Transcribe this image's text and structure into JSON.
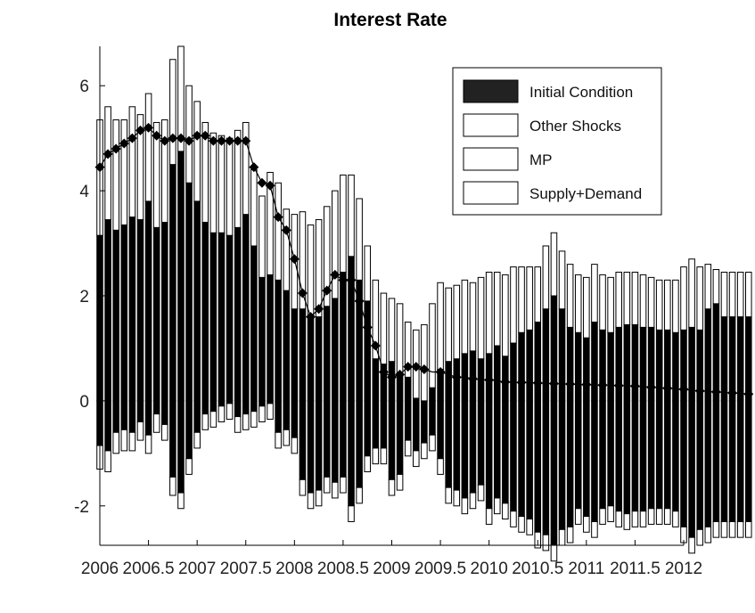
{
  "chart_data": {
    "type": "bar",
    "subtype": "stacked-historical-decomposition",
    "title": "Interest Rate",
    "xlabel": "",
    "ylabel": "",
    "xlim": [
      2006,
      2012
    ],
    "ylim": [
      -2.75,
      6.75
    ],
    "x_ticks": [
      2006,
      2006.5,
      2007,
      2007.5,
      2008,
      2008.5,
      2009,
      2009.5,
      2010,
      2010.5,
      2011,
      2011.5,
      2012
    ],
    "x_tick_labels": [
      "2006",
      "2006.5",
      "2007",
      "2007.5",
      "2008",
      "2008.5",
      "2009",
      "2009.5",
      "2010",
      "2010.5",
      "2011",
      "2011.5",
      "2012"
    ],
    "y_ticks": [
      -2,
      0,
      2,
      4,
      6
    ],
    "y_tick_labels": [
      "-2",
      "0",
      "2",
      "4",
      "6"
    ],
    "grid": false,
    "legend_position": "top-right",
    "x_start": 2006,
    "x_step": 0.0833333,
    "series": [
      {
        "name": "Initial Condition",
        "color": "#000000",
        "pos": [
          3.15,
          3.45,
          3.25,
          3.35,
          3.5,
          3.45,
          3.8,
          3.3,
          3.4,
          4.5,
          4.75,
          4.15,
          3.8,
          3.4,
          3.2,
          3.2,
          3.15,
          3.3,
          3.55,
          2.95,
          2.35,
          2.4,
          2.3,
          2.1,
          1.75,
          1.75,
          1.6,
          1.6,
          1.8,
          1.95,
          2.45,
          2.75,
          2.3,
          1.9,
          0.8,
          0.7,
          0.75,
          0.5,
          0.45,
          0.05,
          0.0,
          0.25,
          0.6,
          0.75,
          0.8,
          0.9,
          0.95,
          0.8,
          0.9,
          1.05,
          0.85,
          1.1,
          1.3,
          1.35,
          1.5,
          1.75,
          2.0,
          1.75,
          1.4,
          1.3,
          1.2,
          1.5,
          1.35,
          1.3,
          1.4,
          1.45,
          1.45,
          1.4,
          1.4,
          1.35,
          1.35,
          1.3,
          1.35,
          1.4,
          1.35,
          1.75,
          1.85,
          1.6,
          1.6,
          1.6,
          1.6
        ],
        "neg": [
          -0.85,
          -0.95,
          -0.6,
          -0.55,
          -0.6,
          -0.4,
          -0.65,
          -0.25,
          -0.45,
          -1.45,
          -1.75,
          -1.1,
          -0.6,
          -0.25,
          -0.2,
          -0.1,
          -0.05,
          -0.3,
          -0.25,
          -0.2,
          -0.1,
          -0.05,
          -0.6,
          -0.55,
          -0.7,
          -1.5,
          -1.75,
          -1.7,
          -1.45,
          -1.55,
          -1.45,
          -2.0,
          -1.65,
          -1.05,
          -0.9,
          -0.9,
          -1.5,
          -1.4,
          -0.75,
          -0.95,
          -0.8,
          -0.65,
          -1.1,
          -1.65,
          -1.7,
          -1.85,
          -1.75,
          -1.6,
          -2.05,
          -1.85,
          -1.95,
          -2.1,
          -2.2,
          -2.25,
          -2.5,
          -2.55,
          -2.75,
          -2.45,
          -2.4,
          -2.05,
          -2.2,
          -2.3,
          -2.05,
          -2.0,
          -2.1,
          -2.15,
          -2.1,
          -2.1,
          -2.05,
          -2.05,
          -2.05,
          -2.1,
          -2.4,
          -2.6,
          -2.45,
          -2.4,
          -2.3,
          -2.3,
          -2.3,
          -2.3,
          -2.3
        ]
      },
      {
        "name": "Other Shocks",
        "color": "#ffffff",
        "pos": [
          2.2,
          2.15,
          2.1,
          2.0,
          2.1,
          2.0,
          2.05,
          2.0,
          1.95,
          2.0,
          2.0,
          1.85,
          1.9,
          1.9,
          1.9,
          1.85,
          1.85,
          1.85,
          1.75,
          1.45,
          1.55,
          1.95,
          1.85,
          1.55,
          1.8,
          1.85,
          1.75,
          1.85,
          1.9,
          2.05,
          1.85,
          1.55,
          1.55,
          1.05,
          1.5,
          1.35,
          1.2,
          1.35,
          1.05,
          1.3,
          1.45,
          1.6,
          1.65,
          1.4,
          1.4,
          1.4,
          1.3,
          1.55,
          1.55,
          1.4,
          1.55,
          1.45,
          1.25,
          1.2,
          1.05,
          1.2,
          1.2,
          1.1,
          1.2,
          1.1,
          1.15,
          1.1,
          1.05,
          1.05,
          1.05,
          1.0,
          1.0,
          1.0,
          0.95,
          0.95,
          0.95,
          1.0,
          1.2,
          1.3,
          1.2,
          0.85,
          0.65,
          0.85,
          0.85,
          0.85,
          0.85
        ],
        "neg": [
          -0.45,
          -0.4,
          -0.4,
          -0.4,
          -0.35,
          -0.35,
          -0.35,
          -0.35,
          -0.3,
          -0.35,
          -0.3,
          -0.3,
          -0.3,
          -0.3,
          -0.3,
          -0.3,
          -0.3,
          -0.3,
          -0.3,
          -0.3,
          -0.3,
          -0.3,
          -0.3,
          -0.3,
          -0.3,
          -0.3,
          -0.3,
          -0.3,
          -0.3,
          -0.3,
          -0.3,
          -0.3,
          -0.3,
          -0.3,
          -0.3,
          -0.3,
          -0.3,
          -0.3,
          -0.3,
          -0.3,
          -0.3,
          -0.3,
          -0.3,
          -0.3,
          -0.3,
          -0.3,
          -0.3,
          -0.3,
          -0.3,
          -0.3,
          -0.3,
          -0.3,
          -0.3,
          -0.3,
          -0.3,
          -0.3,
          -0.3,
          -0.3,
          -0.3,
          -0.3,
          -0.3,
          -0.3,
          -0.3,
          -0.3,
          -0.3,
          -0.3,
          -0.3,
          -0.3,
          -0.3,
          -0.3,
          -0.3,
          -0.3,
          -0.3,
          -0.3,
          -0.3,
          -0.3,
          -0.3,
          -0.3,
          -0.3,
          -0.3,
          -0.3
        ]
      },
      {
        "name": "MP",
        "color": "#ffffff",
        "pos": [
          0,
          0,
          0,
          0,
          0,
          0,
          0,
          0,
          0,
          0,
          0,
          0,
          0,
          0,
          0,
          0,
          0,
          0,
          0,
          0,
          0,
          0,
          0,
          0,
          0,
          0,
          0,
          0,
          0,
          0,
          0,
          0,
          0,
          0,
          0,
          0,
          0,
          0,
          0,
          0,
          0,
          0,
          0,
          0,
          0,
          0,
          0,
          0,
          0,
          0,
          0,
          0,
          0,
          0,
          0,
          0,
          0,
          0,
          0,
          0,
          0,
          0,
          0,
          0,
          0,
          0,
          0,
          0,
          0,
          0,
          0,
          0,
          0,
          0,
          0,
          0,
          0,
          0,
          0,
          0,
          0
        ],
        "neg": [
          0,
          0,
          0,
          0,
          0,
          0,
          0,
          0,
          0,
          0,
          0,
          0,
          0,
          0,
          0,
          0,
          0,
          0,
          0,
          0,
          0,
          0,
          0,
          0,
          0,
          0,
          0,
          0,
          0,
          0,
          0,
          0,
          0,
          0,
          0,
          0,
          0,
          0,
          0,
          0,
          0,
          0,
          0,
          0,
          0,
          0,
          0,
          0,
          0,
          0,
          0,
          0,
          0,
          0,
          0,
          0,
          0,
          0,
          0,
          0,
          0,
          0,
          0,
          0,
          0,
          0,
          0,
          0,
          0,
          0,
          0,
          0,
          0,
          0,
          0,
          0,
          0,
          0,
          0,
          0,
          0
        ]
      },
      {
        "name": "Supply+Demand",
        "color": "#ffffff",
        "pos": [
          0,
          0,
          0,
          0,
          0,
          0,
          0,
          0,
          0,
          0,
          0,
          0,
          0,
          0,
          0,
          0,
          0,
          0,
          0,
          0,
          0,
          0,
          0,
          0,
          0,
          0,
          0,
          0,
          0,
          0,
          0,
          0,
          0,
          0,
          0,
          0,
          0,
          0,
          0,
          0,
          0,
          0,
          0,
          0,
          0,
          0,
          0,
          0,
          0,
          0,
          0,
          0,
          0,
          0,
          0,
          0,
          0,
          0,
          0,
          0,
          0,
          0,
          0,
          0,
          0,
          0,
          0,
          0,
          0,
          0,
          0,
          0,
          0,
          0,
          0,
          0,
          0,
          0,
          0,
          0,
          0
        ],
        "neg": [
          0,
          0,
          0,
          0,
          0,
          0,
          0,
          0,
          0,
          0,
          0,
          0,
          0,
          0,
          0,
          0,
          0,
          0,
          0,
          0,
          0,
          0,
          0,
          0,
          0,
          0,
          0,
          0,
          0,
          0,
          0,
          0,
          0,
          0,
          0,
          0,
          0,
          0,
          0,
          0,
          0,
          0,
          0,
          0,
          0,
          0,
          0,
          0,
          0,
          0,
          0,
          0,
          0,
          0,
          0,
          0,
          0,
          0,
          0,
          0,
          0,
          0,
          0,
          0,
          0,
          0,
          0,
          0,
          0,
          0,
          0,
          0,
          0,
          0,
          0,
          0,
          0,
          0,
          0,
          0,
          0
        ]
      }
    ],
    "actual_series": {
      "color": "#000000",
      "marker": "diamond",
      "values": [
        4.45,
        4.7,
        4.8,
        4.9,
        5.0,
        5.15,
        5.2,
        5.05,
        4.95,
        5.0,
        5.0,
        4.95,
        5.05,
        5.05,
        4.95,
        4.95,
        4.95,
        4.95,
        4.95,
        4.45,
        4.15,
        4.1,
        3.5,
        3.25,
        2.7,
        2.05,
        1.6,
        1.75,
        2.1,
        2.4,
        2.3,
        2.3,
        1.9,
        1.4,
        1.05,
        0.55,
        0.45,
        0.5,
        0.65,
        0.65,
        0.6,
        0.55,
        0.55,
        0.5,
        0.45,
        0.45,
        0.42,
        0.4,
        0.4,
        0.38,
        0.36,
        0.35,
        0.35,
        0.35,
        0.34,
        0.33,
        0.33,
        0.32,
        0.32,
        0.31,
        0.31,
        0.3,
        0.3,
        0.3,
        0.29,
        0.29,
        0.28,
        0.27,
        0.26,
        0.25,
        0.24,
        0.23,
        0.22,
        0.2,
        0.19,
        0.18,
        0.17,
        0.16,
        0.15,
        0.14,
        0.13
      ]
    }
  }
}
